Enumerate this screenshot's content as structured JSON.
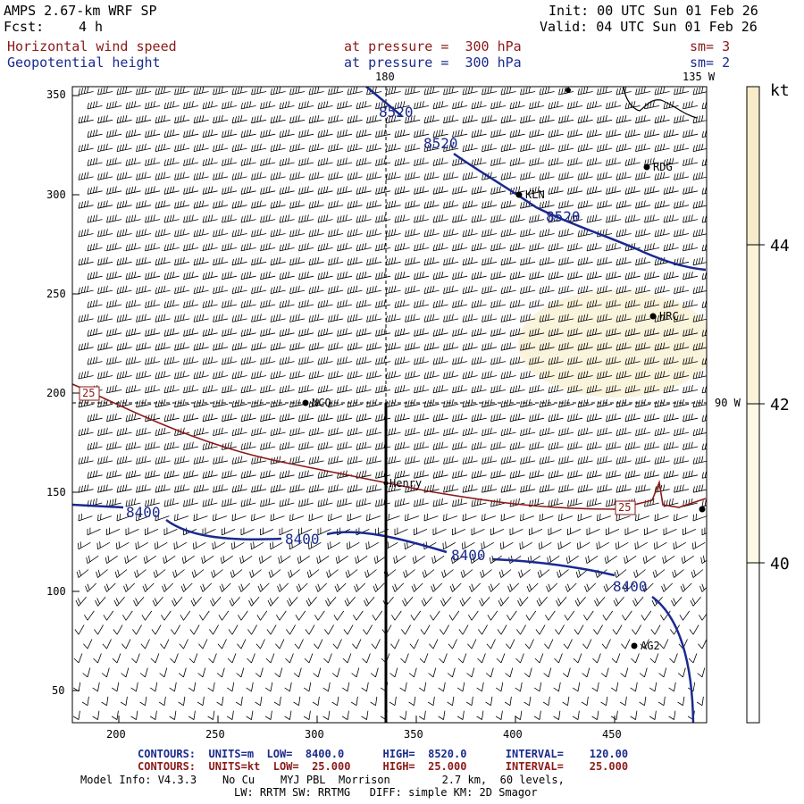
{
  "header": {
    "title": "AMPS 2.67-km WRF SP",
    "forecast_label": "Fcst:",
    "forecast_value": "4 h",
    "init": "Init: 00 UTC Sun 01 Feb 26",
    "valid": "Valid: 04 UTC Sun 01 Feb 26",
    "field1_name": "Horizontal wind speed",
    "field1_level": "at pressure =  300 hPa",
    "field1_smooth": "sm= 3",
    "field2_name": "Geopotential height",
    "field2_level": "at pressure =  300 hPa",
    "field2_smooth": "sm= 2"
  },
  "map": {
    "longitude_labels": {
      "top_180": "180",
      "top_135w": "135 W",
      "right_90w": "90 W"
    },
    "x_ticks": [
      "200",
      "250",
      "300",
      "350",
      "400",
      "450"
    ],
    "y_ticks": [
      "350",
      "300",
      "250",
      "200",
      "150",
      "100",
      "50"
    ],
    "stations": [
      {
        "name": "RDG"
      },
      {
        "name": "KLN"
      },
      {
        "name": "HRC"
      },
      {
        "name": "NCO"
      },
      {
        "name": "Henry"
      },
      {
        "name": "AG2"
      }
    ],
    "height_contour_labels": [
      "8520",
      "8520",
      "8520",
      "8400",
      "8400",
      "8400",
      "8400"
    ],
    "wind_contour_labels": [
      "25",
      "25"
    ]
  },
  "colorbar": {
    "unit": "kt",
    "labels": [
      "44",
      "42",
      "40"
    ],
    "colors": {
      "top": "#f7ebc9",
      "mid": "#fbf2d8",
      "low": "#fdf9e6",
      "base": "#ffffff"
    }
  },
  "footer": {
    "contours1": "CONTOURS:  UNITS=m  LOW=  8400.0      HIGH=  8520.0      INTERVAL=    120.00",
    "contours2": "CONTOURS:  UNITS=kt  LOW=  25.000     HIGH=  25.000      INTERVAL=    25.000",
    "model_info": "Model Info: V4.3.3    No Cu    MYJ PBL  Morrison        2.7 km,  60 levels,",
    "physics": "LW: RRTM SW: RRTMG   DIFF: simple KM: 2D Smagor"
  },
  "colors": {
    "height_contour": "#1a2a8f",
    "wind_contour": "#8b1a1a",
    "barb": "#000000",
    "text_red": "#8b1a1a",
    "text_blue": "#1a2a8f"
  }
}
